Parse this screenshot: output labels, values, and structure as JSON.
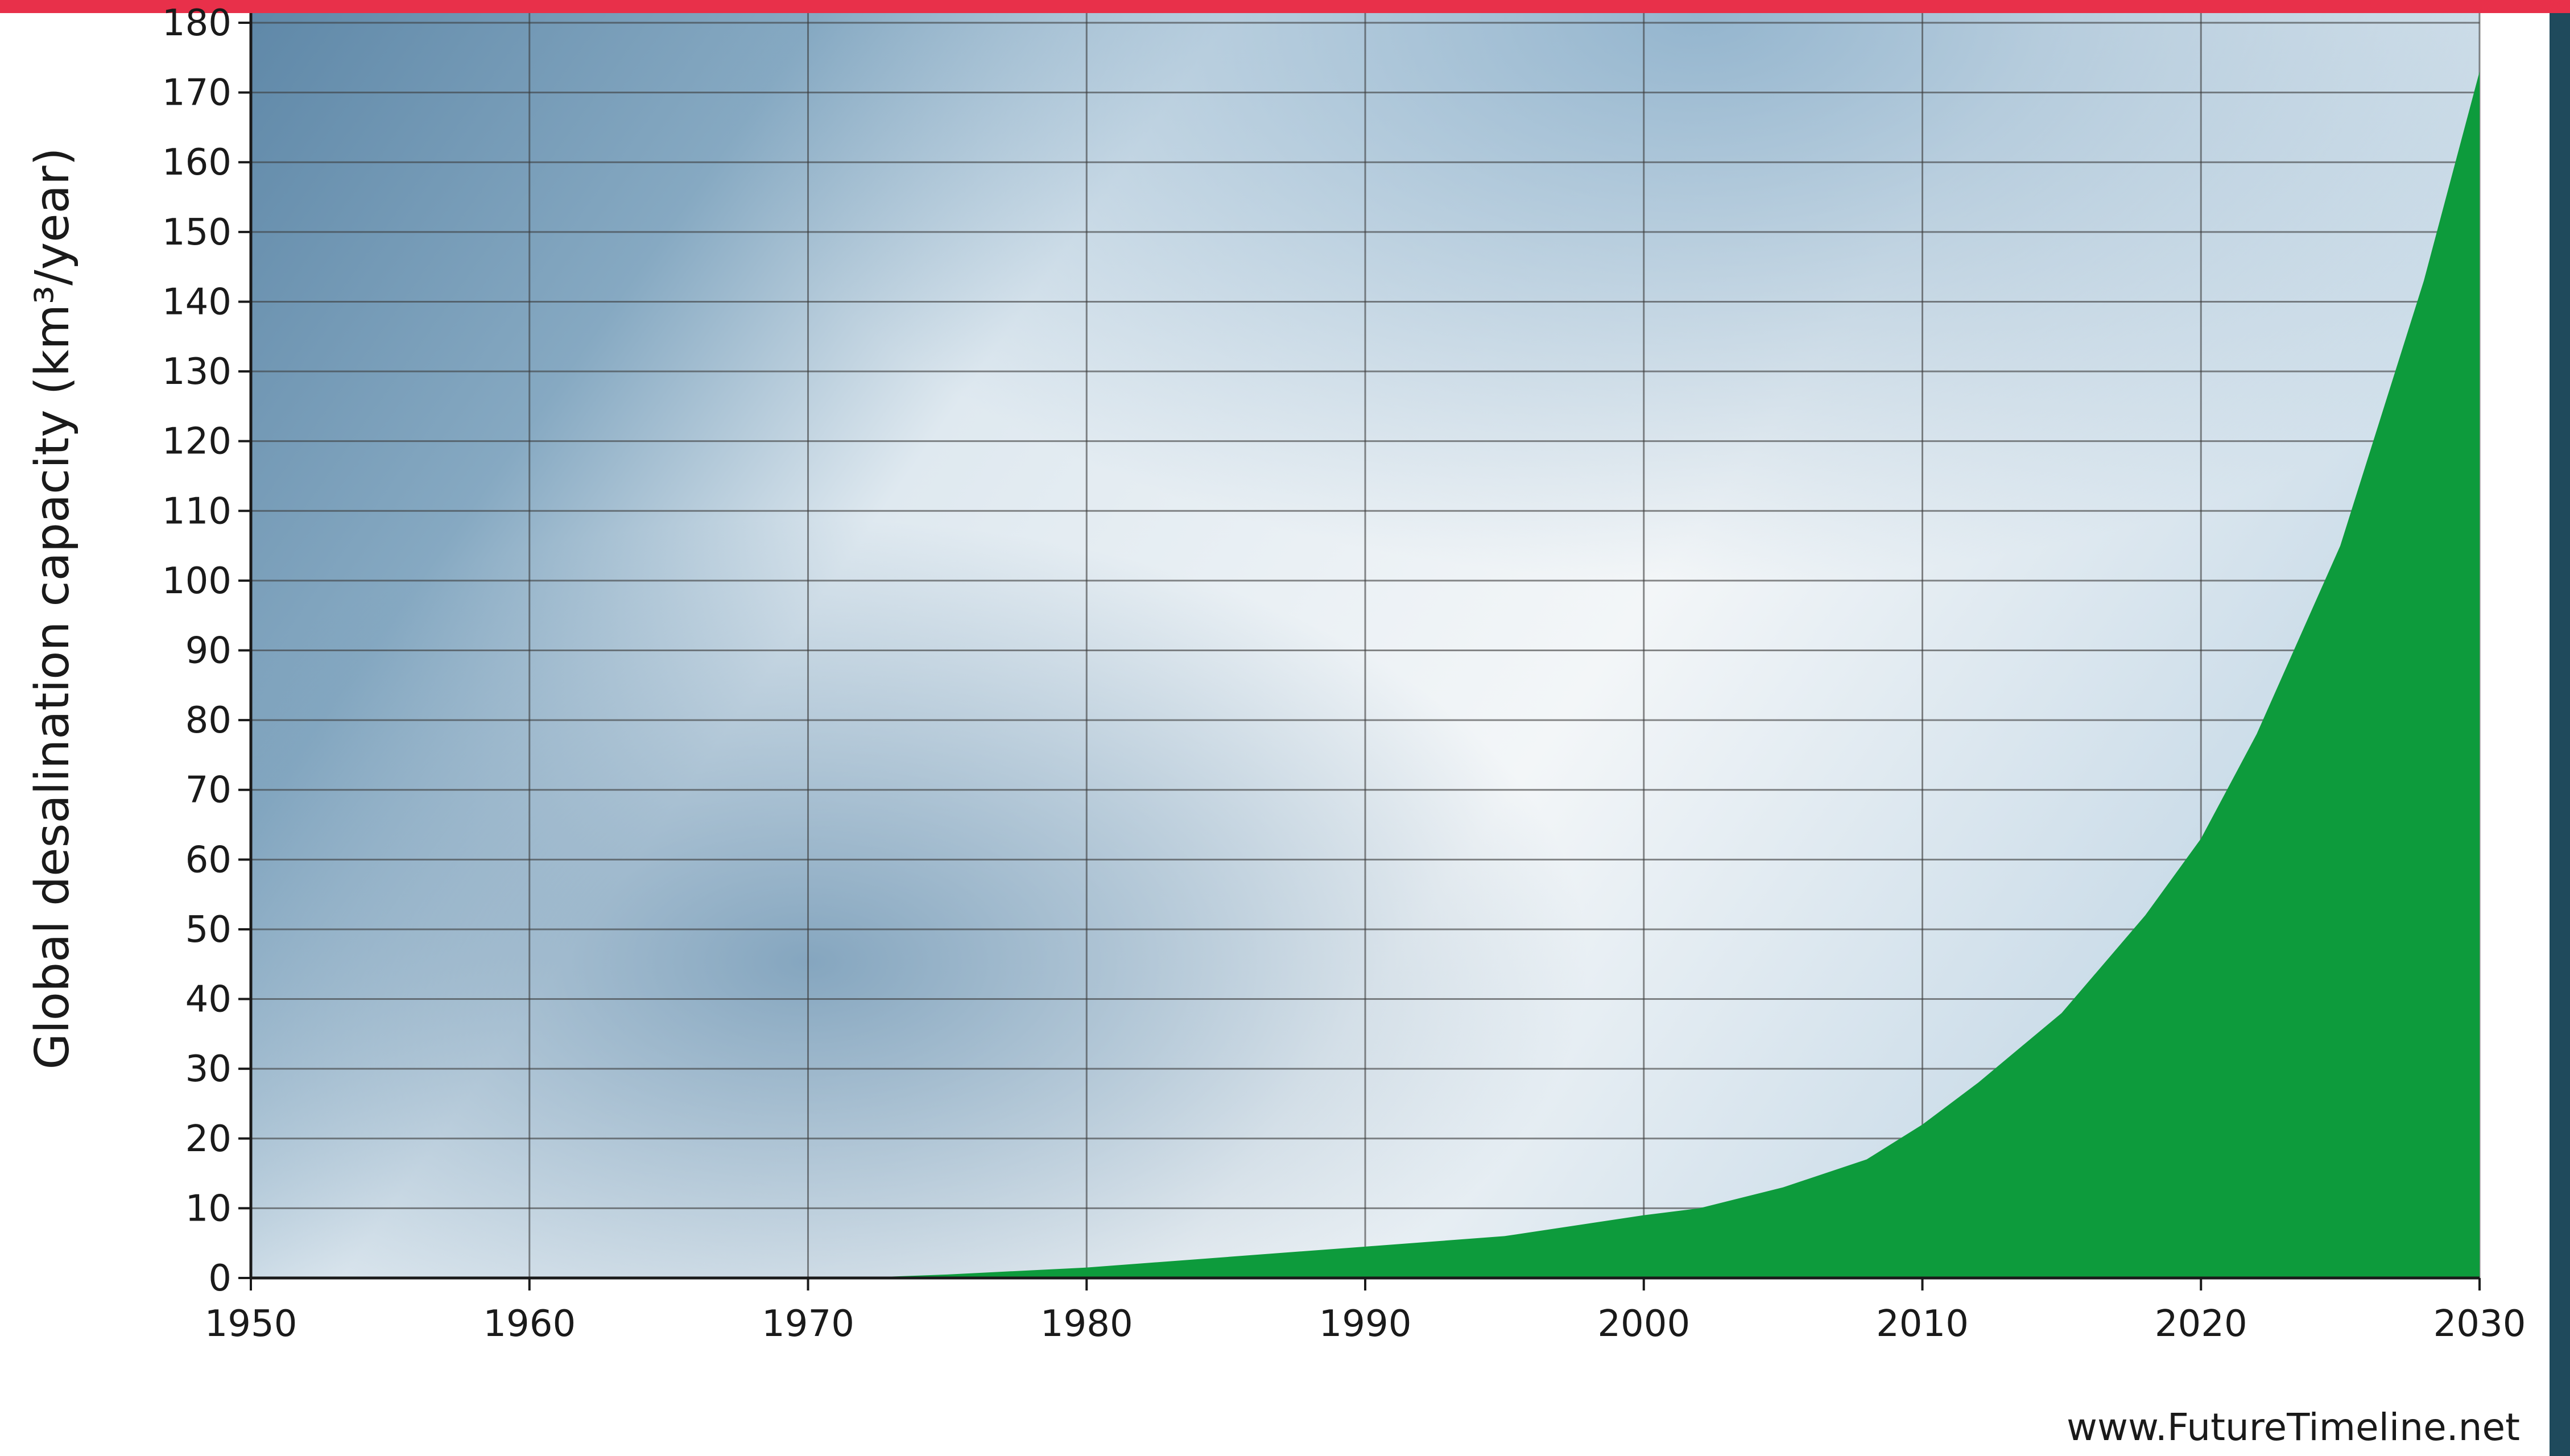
{
  "chart_data": {
    "type": "area",
    "y_label": "Global desalination capacity (km³/year)",
    "source": "www.FutureTimeline.net",
    "x": [
      1950,
      1970,
      1973,
      1975,
      1980,
      1985,
      1990,
      1995,
      2000,
      2002,
      2005,
      2008,
      2010,
      2012,
      2015,
      2018,
      2020,
      2022,
      2025,
      2028,
      2030
    ],
    "values": [
      0,
      0,
      0.2,
      0.5,
      1.5,
      3,
      4.5,
      6,
      9,
      10,
      13,
      17,
      22,
      28,
      38,
      52,
      63,
      78,
      105,
      143,
      173
    ],
    "color": "#0d9b3c",
    "xlim": [
      1950,
      2030
    ],
    "xticks": [
      1950,
      1960,
      1970,
      1980,
      1990,
      2000,
      2010,
      2020,
      2030
    ],
    "ylim": [
      0,
      180
    ],
    "yticks": [
      0,
      10,
      20,
      30,
      40,
      50,
      60,
      70,
      80,
      90,
      100,
      110,
      120,
      130,
      140,
      150,
      160,
      170,
      180
    ],
    "grid": true
  }
}
